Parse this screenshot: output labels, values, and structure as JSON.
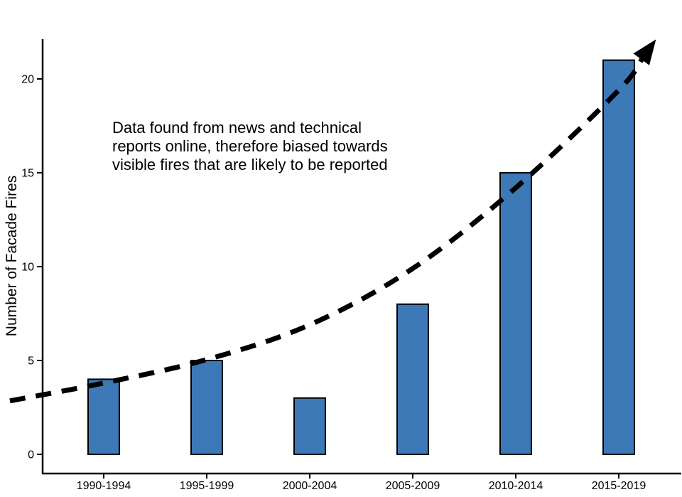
{
  "chart_data": {
    "type": "bar",
    "title": "",
    "xlabel": "",
    "ylabel": "Number of Facade Fires",
    "categories": [
      "1990-1994",
      "1995-1999",
      "2000-2004",
      "2005-2009",
      "2010-2014",
      "2015-2019"
    ],
    "values": [
      4,
      5,
      3,
      8,
      15,
      21
    ],
    "yticks": [
      0,
      5,
      10,
      15,
      20
    ],
    "ylim": [
      0,
      22.1
    ],
    "grid": false,
    "legend": "none",
    "bar_color": "#3C79B6",
    "bar_edge_color": "#000000",
    "axis_color": "#000000",
    "annotation": {
      "text": "Data found from news and technical\nreports online, therefore biased towards\nvisible fires that are likely to be reported"
    },
    "trend": {
      "style": "dashed",
      "arrow": true,
      "color": "#000000",
      "x_category_units": [
        -0.91,
        0,
        1,
        2,
        3,
        4,
        5,
        5.24
      ],
      "values": [
        2.85,
        3.8,
        5.05,
        6.9,
        9.9,
        14.2,
        19.4,
        21.2
      ]
    }
  }
}
